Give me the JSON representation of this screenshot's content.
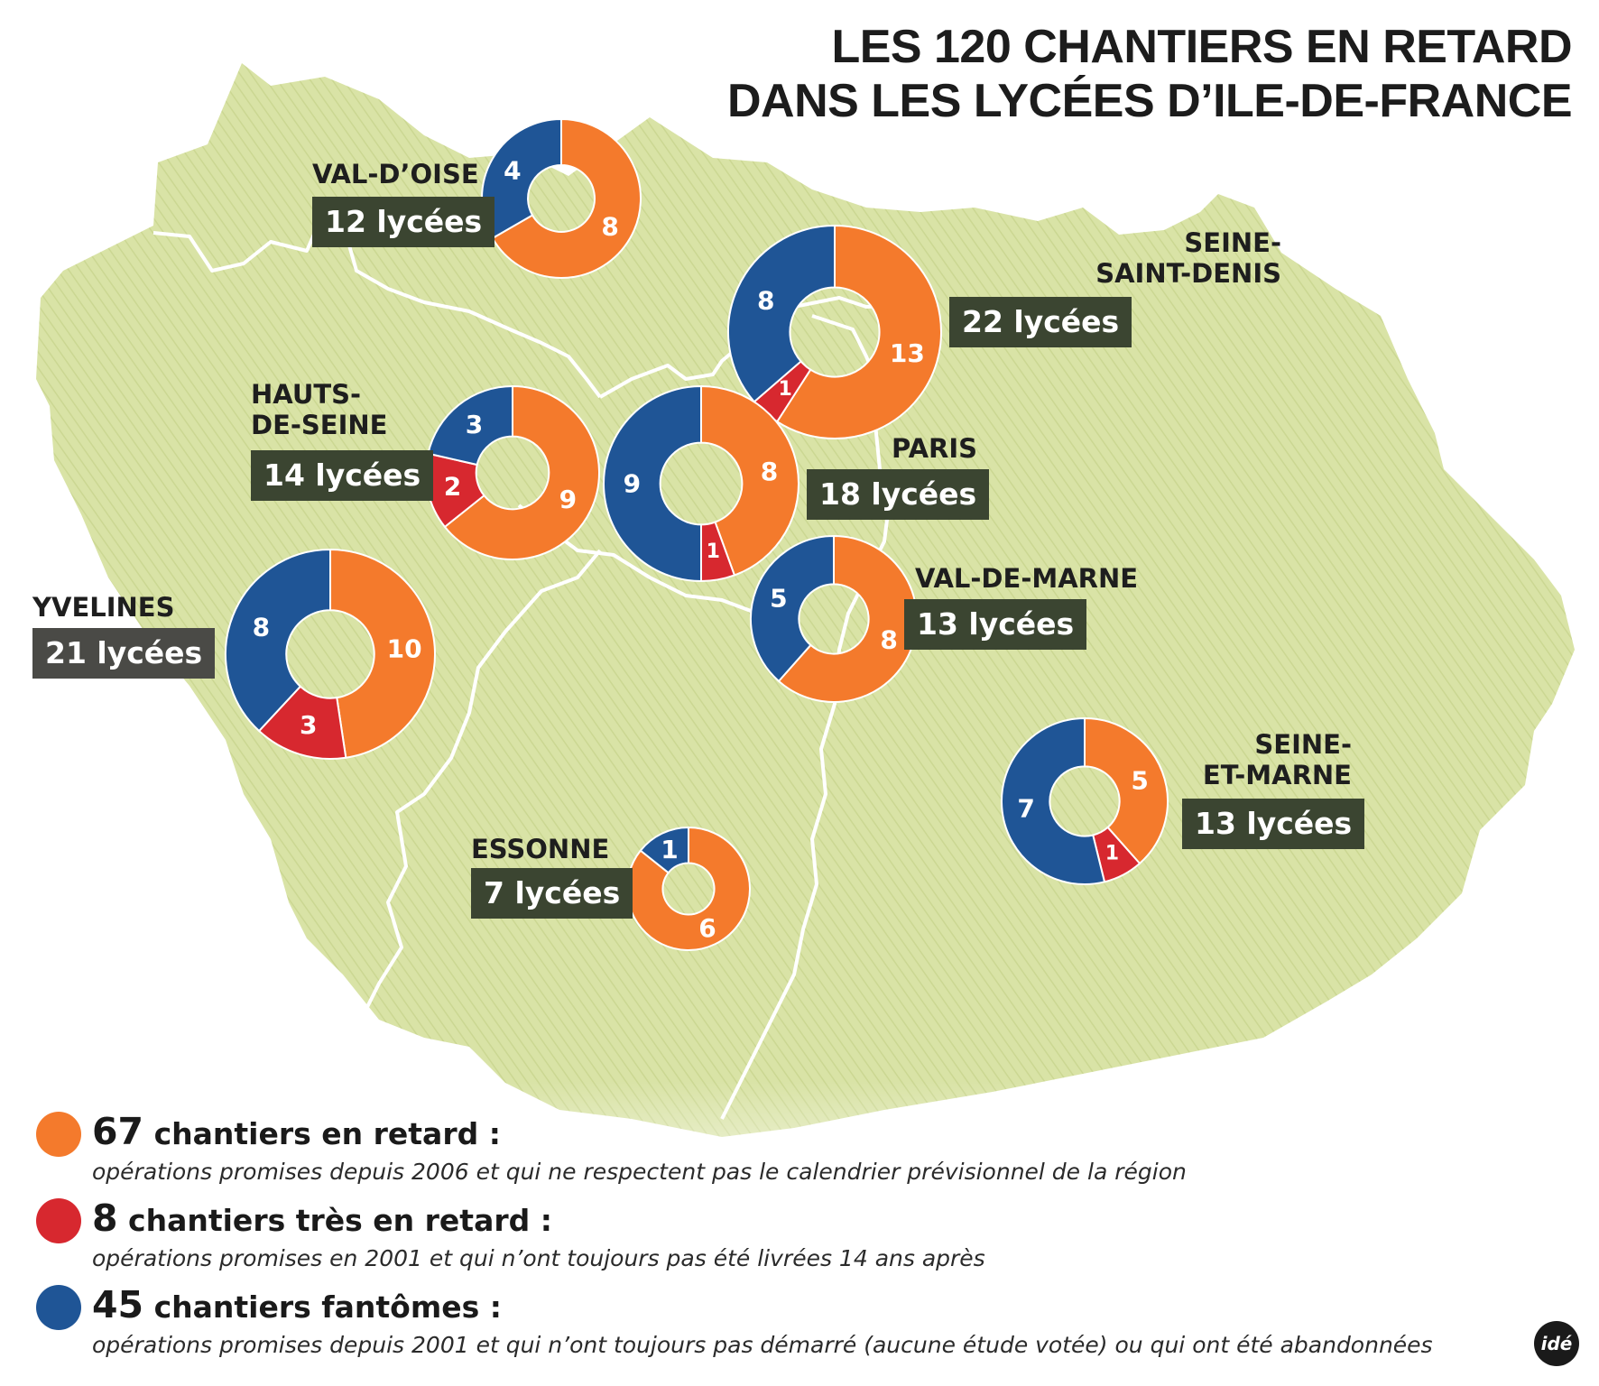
{
  "title": {
    "line1": "LES 120 CHANTIERS EN RETARD",
    "line2": "DANS LES LYCÉES D’ILE-DE-FRANCE"
  },
  "colors": {
    "retard": "#f47a2c",
    "tres_retard": "#d7282f",
    "fantomes": "#1f5596",
    "map_fill": "#d9e3a6",
    "box": "#3b4531"
  },
  "departements": [
    {
      "name": "VAL-D’OISE",
      "count_label": "12 lycées",
      "retard": 8,
      "tres_retard": 0,
      "fantomes": 4
    },
    {
      "name": "SEINE-SAINT-DENIS",
      "name_lines": [
        "SEINE-",
        "SAINT-DENIS"
      ],
      "count_label": "22 lycées",
      "retard": 13,
      "tres_retard": 1,
      "fantomes": 8
    },
    {
      "name": "HAUTS-DE-SEINE",
      "name_lines": [
        "HAUTS-",
        "DE-SEINE"
      ],
      "count_label": "14 lycées",
      "retard": 9,
      "tres_retard": 2,
      "fantomes": 3
    },
    {
      "name": "PARIS",
      "count_label": "18 lycées",
      "retard": 8,
      "tres_retard": 1,
      "fantomes": 9
    },
    {
      "name": "YVELINES",
      "count_label": "21 lycées",
      "retard": 10,
      "tres_retard": 3,
      "fantomes": 8
    },
    {
      "name": "VAL-DE-MARNE",
      "count_label": "13 lycées",
      "retard": 8,
      "tres_retard": 0,
      "fantomes": 5
    },
    {
      "name": "SEINE-ET-MARNE",
      "name_lines": [
        "SEINE-",
        "ET-MARNE"
      ],
      "count_label": "13 lycées",
      "retard": 5,
      "tres_retard": 1,
      "fantomes": 7
    },
    {
      "name": "ESSONNE",
      "count_label": "7 lycées",
      "retard": 6,
      "tres_retard": 0,
      "fantomes": 1
    }
  ],
  "legend": [
    {
      "key": "retard",
      "number": "67",
      "label": "chantiers en retard :",
      "description": "opérations promises depuis 2006 et qui ne respectent pas le calendrier prévisionnel de la région"
    },
    {
      "key": "tres_retard",
      "number": "8",
      "label": "chantiers très en retard :",
      "description": "opérations promises en 2001 et qui n’ont toujours pas été livrées 14 ans après"
    },
    {
      "key": "fantomes",
      "number": "45",
      "label": "chantiers fantômes :",
      "description": "opérations promises depuis 2001 et qui n’ont toujours pas démarré (aucune étude votée) ou qui ont été abandonnées"
    }
  ],
  "logo": "idé"
}
